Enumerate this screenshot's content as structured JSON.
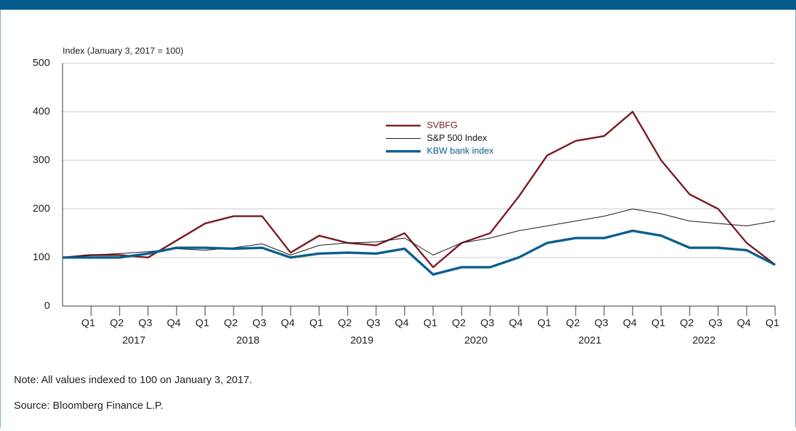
{
  "chart_data": {
    "type": "line",
    "y_axis_label": "Index (January 3, 2017 = 100)",
    "categories": [
      null,
      "Q1",
      "Q2",
      "Q3",
      "Q4",
      "Q1",
      "Q2",
      "Q3",
      "Q4",
      "Q1",
      "Q2",
      "Q3",
      "Q4",
      "Q1",
      "Q2",
      "Q3",
      "Q4",
      "Q1",
      "Q2",
      "Q3",
      "Q4",
      "Q1",
      "Q2",
      "Q3",
      "Q4",
      "Q1"
    ],
    "years": [
      "2017",
      "2018",
      "2019",
      "2020",
      "2021",
      "2022"
    ],
    "series": [
      {
        "name": "SVBFG",
        "color": "#7b1c22",
        "values": [
          100,
          105,
          105,
          100,
          135,
          170,
          185,
          185,
          110,
          145,
          130,
          125,
          150,
          80,
          130,
          150,
          225,
          310,
          340,
          350,
          400,
          300,
          230,
          200,
          130,
          85
        ]
      },
      {
        "name": "S&P 500 Index",
        "color": "#111111",
        "values": [
          100,
          105,
          108,
          112,
          118,
          115,
          120,
          128,
          105,
          125,
          130,
          132,
          140,
          105,
          130,
          140,
          155,
          165,
          175,
          185,
          200,
          190,
          175,
          170,
          165,
          175
        ]
      },
      {
        "name": "KBW bank index",
        "color": "#0a5e8e",
        "values": [
          100,
          100,
          100,
          108,
          120,
          120,
          118,
          120,
          100,
          108,
          110,
          108,
          118,
          65,
          80,
          80,
          100,
          130,
          140,
          140,
          155,
          145,
          120,
          120,
          115,
          85
        ]
      }
    ],
    "ylim": [
      0,
      500
    ],
    "yticks": [
      0,
      100,
      200,
      300,
      400,
      500
    ],
    "grid": true,
    "note": "Note: All values indexed to 100 on January 3, 2017.",
    "source": "Source: Bloomberg Finance L.P."
  }
}
